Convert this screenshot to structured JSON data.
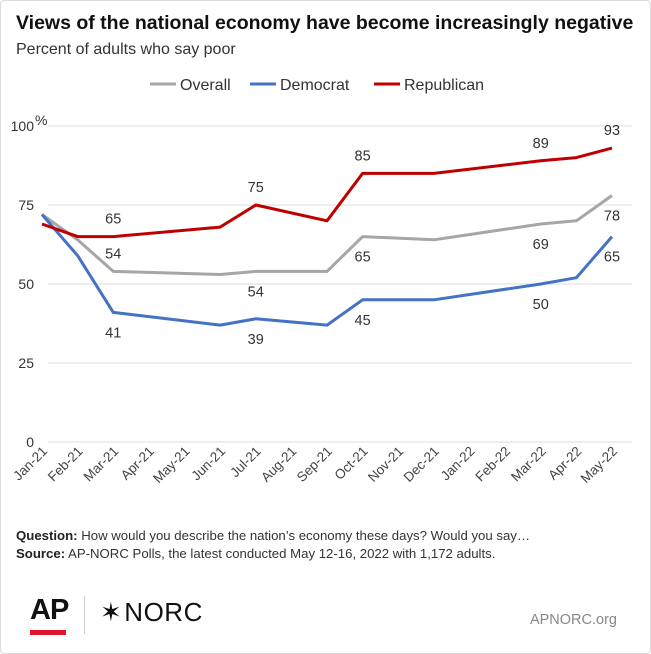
{
  "title": "Views of the national economy have become increasingly negative",
  "subtitle": "Percent of adults who say poor",
  "chart_data": {
    "type": "line",
    "ylim": [
      0,
      100
    ],
    "yticks": [
      {
        "v": 0,
        "label": "0"
      },
      {
        "v": 25,
        "label": "25"
      },
      {
        "v": 50,
        "label": "50"
      },
      {
        "v": 75,
        "label": "75"
      },
      {
        "v": 100,
        "label": "100"
      }
    ],
    "ytick_unit": "%",
    "grid": true,
    "legend_position": "top",
    "x": [
      "Jan-21",
      "Feb-21",
      "Mar-21",
      "Apr-21",
      "May-21",
      "Jun-21",
      "Jul-21",
      "Aug-21",
      "Sep-21",
      "Oct-21",
      "Nov-21",
      "Dec-21",
      "Jan-22",
      "Feb-22",
      "Mar-22",
      "Apr-22",
      "May-22"
    ],
    "series": [
      {
        "name": "Overall",
        "color": "#a6a6a6",
        "points": [
          [
            "Jan-21",
            72
          ],
          [
            "Feb-21",
            64
          ],
          [
            "Mar-21",
            54
          ],
          [
            "Jun-21",
            53
          ],
          [
            "Jul-21",
            54
          ],
          [
            "Sep-21",
            54
          ],
          [
            "Oct-21",
            65
          ],
          [
            "Dec-21",
            64
          ],
          [
            "Mar-22",
            69
          ],
          [
            "Apr-22",
            70
          ],
          [
            "May-22",
            78
          ]
        ],
        "labels": [
          {
            "x": "Mar-21",
            "text": "54",
            "pos": "above"
          },
          {
            "x": "Jul-21",
            "text": "54",
            "pos": "below"
          },
          {
            "x": "Oct-21",
            "text": "65",
            "pos": "below"
          },
          {
            "x": "Mar-22",
            "text": "69",
            "pos": "below"
          },
          {
            "x": "May-22",
            "text": "78",
            "pos": "below"
          }
        ]
      },
      {
        "name": "Democrat",
        "color": "#4472c4",
        "points": [
          [
            "Jan-21",
            72
          ],
          [
            "Feb-21",
            59
          ],
          [
            "Mar-21",
            41
          ],
          [
            "Jun-21",
            37
          ],
          [
            "Jul-21",
            39
          ],
          [
            "Sep-21",
            37
          ],
          [
            "Oct-21",
            45
          ],
          [
            "Dec-21",
            45
          ],
          [
            "Mar-22",
            50
          ],
          [
            "Apr-22",
            52
          ],
          [
            "May-22",
            65
          ]
        ],
        "labels": [
          {
            "x": "Mar-21",
            "text": "41",
            "pos": "below"
          },
          {
            "x": "Jul-21",
            "text": "39",
            "pos": "below"
          },
          {
            "x": "Oct-21",
            "text": "45",
            "pos": "below"
          },
          {
            "x": "Mar-22",
            "text": "50",
            "pos": "below"
          },
          {
            "x": "May-22",
            "text": "65",
            "pos": "below"
          }
        ]
      },
      {
        "name": "Republican",
        "color": "#c00000",
        "points": [
          [
            "Jan-21",
            69
          ],
          [
            "Feb-21",
            65
          ],
          [
            "Mar-21",
            65
          ],
          [
            "Jun-21",
            68
          ],
          [
            "Jul-21",
            75
          ],
          [
            "Sep-21",
            70
          ],
          [
            "Oct-21",
            85
          ],
          [
            "Dec-21",
            85
          ],
          [
            "Mar-22",
            89
          ],
          [
            "Apr-22",
            90
          ],
          [
            "May-22",
            93
          ]
        ],
        "labels": [
          {
            "x": "Mar-21",
            "text": "65",
            "pos": "above"
          },
          {
            "x": "Jul-21",
            "text": "75",
            "pos": "above"
          },
          {
            "x": "Oct-21",
            "text": "85",
            "pos": "above"
          },
          {
            "x": "Mar-22",
            "text": "89",
            "pos": "above"
          },
          {
            "x": "May-22",
            "text": "93",
            "pos": "above"
          }
        ]
      }
    ]
  },
  "footer": {
    "question_label": "Question:",
    "question_text": "How would you describe the nation’s economy these days? Would you say…",
    "source_label": "Source:",
    "source_text": "AP-NORC Polls, the latest conducted May 12-16, 2022 with 1,172 adults."
  },
  "logos": {
    "ap": "AP",
    "norc_star": "✶",
    "norc": "NORC",
    "ap_bar_color": "#e0142d"
  },
  "site": "APNORC.org"
}
